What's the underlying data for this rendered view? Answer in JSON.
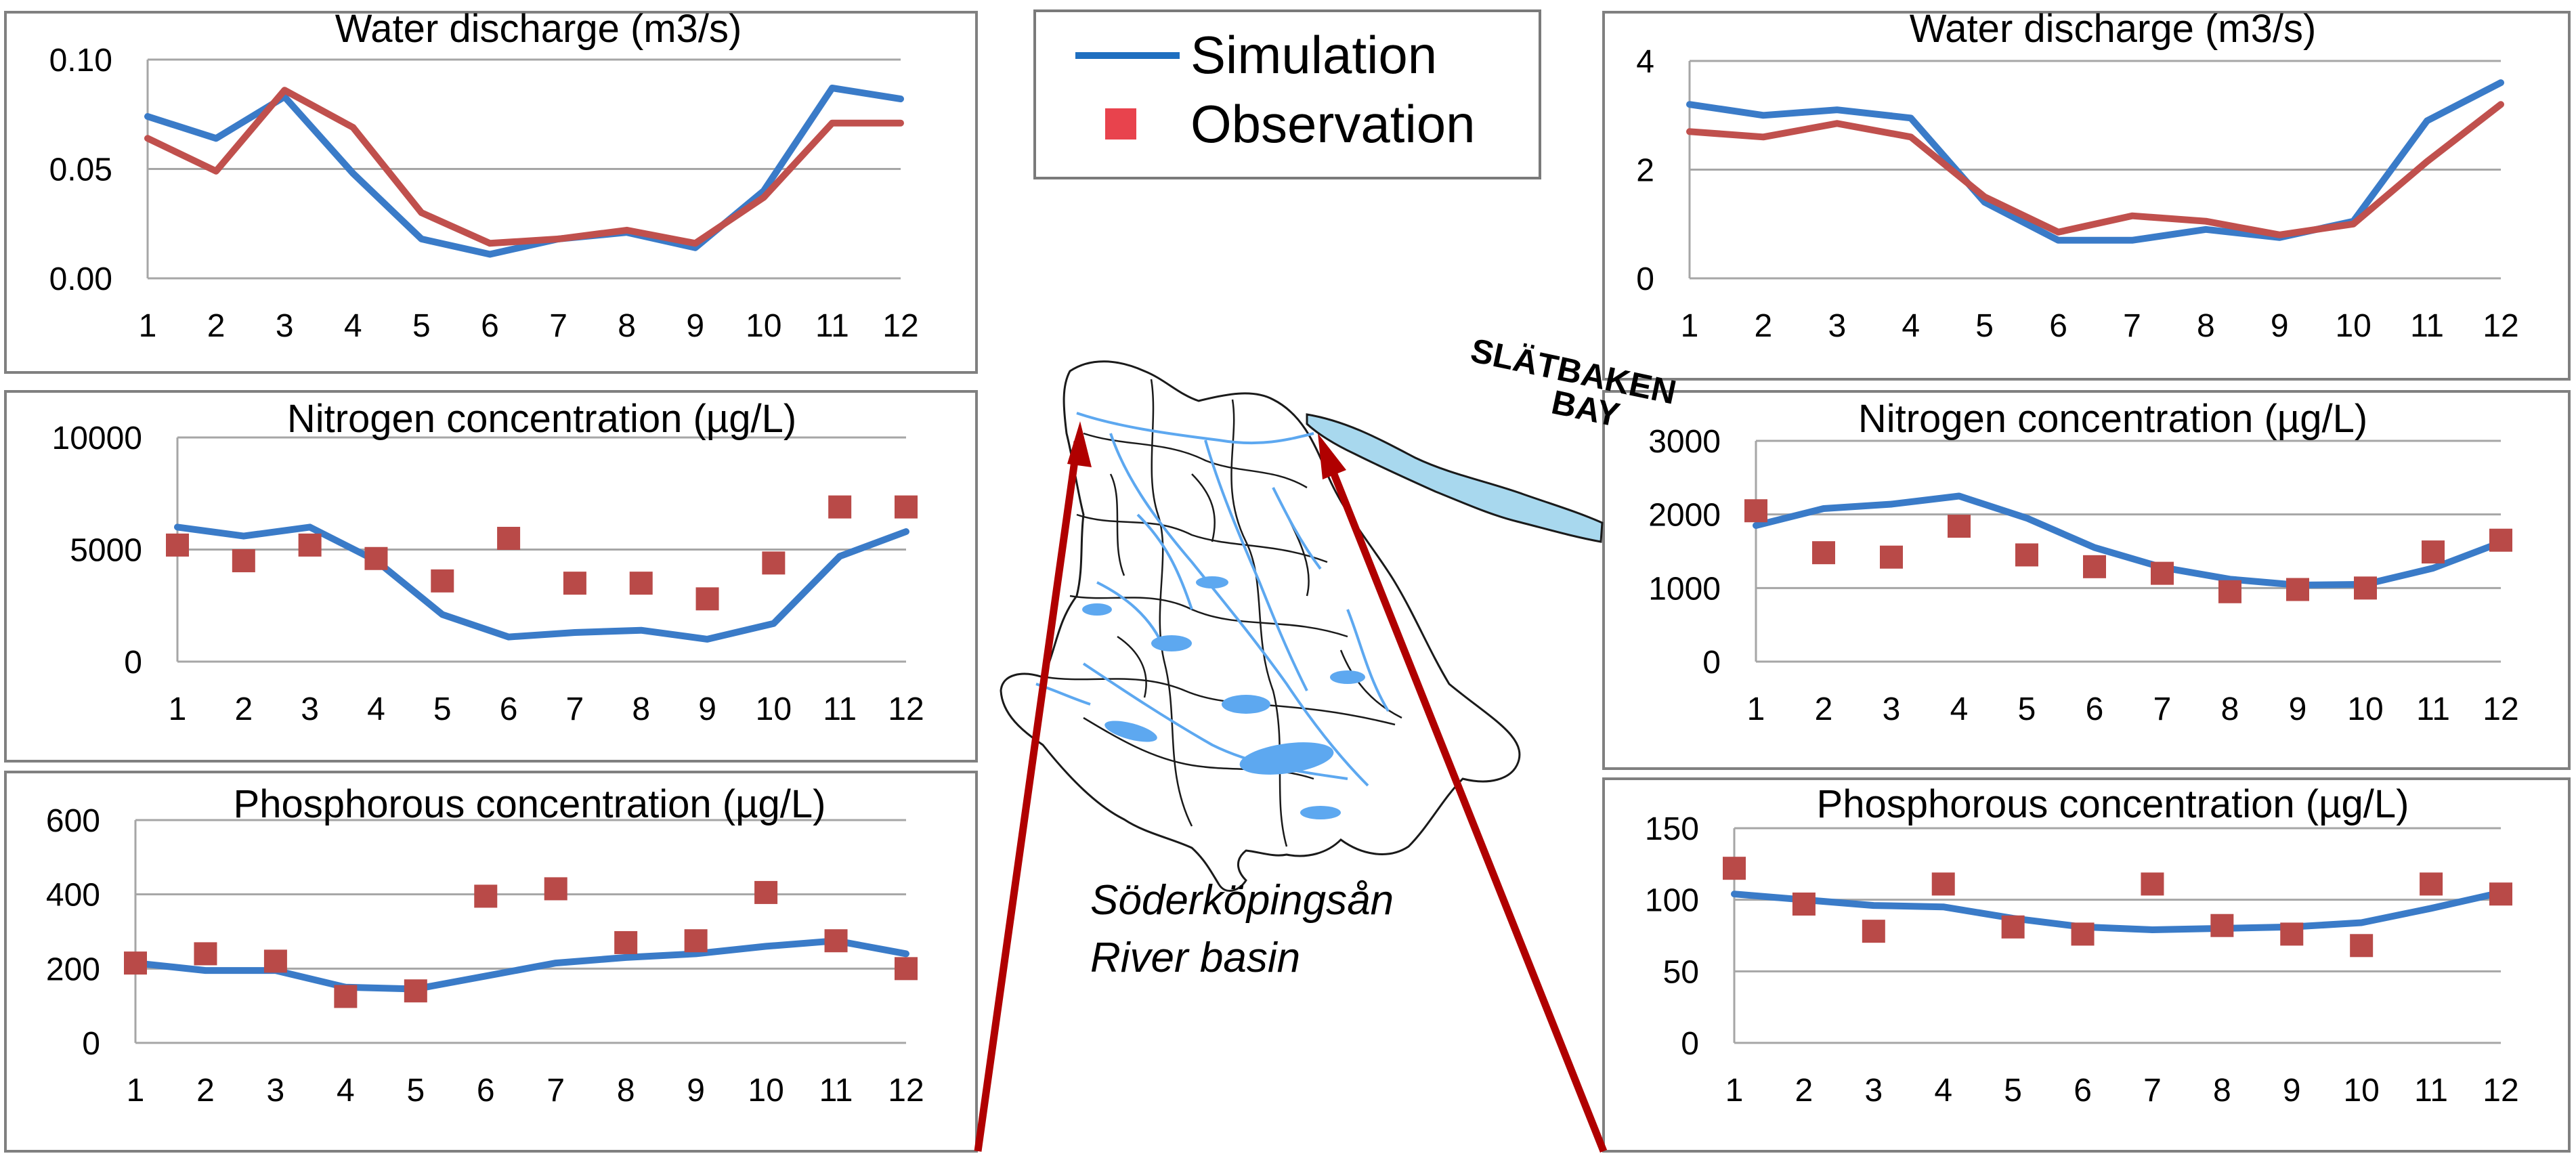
{
  "legend": {
    "simulation_label": "Simulation",
    "observation_label": "Observation"
  },
  "colors": {
    "simulation": "#3A7BC8",
    "observation_line": "#C0504D",
    "observation_marker": "#B94A48",
    "legend_simulation": "#1F6FC0",
    "legend_observation": "#E8434D",
    "frame": "#808080",
    "grid": "#A6A6A6",
    "arrow": "#B00000",
    "map_outline": "#1A1A1A",
    "map_water": "#5DA8F0",
    "bay_fill": "#A8D8EE"
  },
  "map": {
    "bay_label_line1": "SLÄTBAKEN",
    "bay_label_line2": "BAY",
    "basin_label_line1": "Söderköpingsån",
    "basin_label_line2": "River basin"
  },
  "chart_data": [
    {
      "id": "left-discharge",
      "type": "line",
      "title": "Water discharge (m3/s)",
      "x": [
        1,
        2,
        3,
        4,
        5,
        6,
        7,
        8,
        9,
        10,
        11,
        12
      ],
      "ylim": [
        0,
        0.1
      ],
      "yticks": [
        "0.00",
        "0.05",
        "0.10"
      ],
      "grid": true,
      "series": [
        {
          "name": "Simulation",
          "style": "line",
          "values": [
            0.074,
            0.064,
            0.083,
            0.048,
            0.018,
            0.011,
            0.018,
            0.021,
            0.014,
            0.04,
            0.087,
            0.082
          ]
        },
        {
          "name": "Observation",
          "style": "line",
          "values": [
            0.064,
            0.049,
            0.086,
            0.069,
            0.03,
            0.016,
            0.018,
            0.022,
            0.016,
            0.037,
            0.071,
            0.071
          ]
        }
      ]
    },
    {
      "id": "left-nitrogen",
      "type": "line",
      "title": "Nitrogen concentration (µg/L)",
      "x": [
        1,
        2,
        3,
        4,
        5,
        6,
        7,
        8,
        9,
        10,
        11,
        12
      ],
      "ylim": [
        0,
        10000
      ],
      "yticks": [
        "0",
        "5000",
        "10000"
      ],
      "grid": true,
      "series": [
        {
          "name": "Simulation",
          "style": "line",
          "values": [
            6000,
            5600,
            6000,
            4500,
            2100,
            1100,
            1300,
            1400,
            1000,
            1700,
            4700,
            5800
          ]
        },
        {
          "name": "Observation",
          "style": "markers",
          "values": [
            5200,
            4500,
            5200,
            4600,
            3600,
            5500,
            3500,
            3500,
            2800,
            4400,
            6900,
            6900
          ]
        }
      ]
    },
    {
      "id": "left-phosphorous",
      "type": "line",
      "title": "Phosphorous concentration (µg/L)",
      "x": [
        1,
        2,
        3,
        4,
        5,
        6,
        7,
        8,
        9,
        10,
        11,
        12
      ],
      "ylim": [
        0,
        600
      ],
      "yticks": [
        "0",
        "200",
        "400",
        "600"
      ],
      "grid": true,
      "series": [
        {
          "name": "Simulation",
          "style": "line",
          "values": [
            215,
            195,
            195,
            150,
            145,
            180,
            215,
            230,
            240,
            260,
            275,
            240
          ]
        },
        {
          "name": "Observation",
          "style": "markers",
          "values": [
            215,
            240,
            220,
            125,
            140,
            395,
            415,
            270,
            275,
            405,
            275,
            200
          ]
        }
      ]
    },
    {
      "id": "right-discharge",
      "type": "line",
      "title": "Water discharge (m3/s)",
      "x": [
        1,
        2,
        3,
        4,
        5,
        6,
        7,
        8,
        9,
        10,
        11,
        12
      ],
      "ylim": [
        0,
        4
      ],
      "yticks": [
        "0",
        "2",
        "4"
      ],
      "grid": true,
      "series": [
        {
          "name": "Simulation",
          "style": "line",
          "values": [
            3.2,
            3.0,
            3.1,
            2.95,
            1.4,
            0.7,
            0.7,
            0.9,
            0.75,
            1.05,
            2.9,
            3.6
          ]
        },
        {
          "name": "Observation",
          "style": "line",
          "values": [
            2.7,
            2.6,
            2.85,
            2.6,
            1.5,
            0.85,
            1.15,
            1.05,
            0.8,
            1.0,
            2.15,
            3.2
          ]
        }
      ]
    },
    {
      "id": "right-nitrogen",
      "type": "line",
      "title": "Nitrogen concentration (µg/L)",
      "x": [
        1,
        2,
        3,
        4,
        5,
        6,
        7,
        8,
        9,
        10,
        11,
        12
      ],
      "ylim": [
        0,
        3000
      ],
      "yticks": [
        "0",
        "1000",
        "2000",
        "3000"
      ],
      "grid": true,
      "series": [
        {
          "name": "Simulation",
          "style": "line",
          "values": [
            1850,
            2080,
            2140,
            2250,
            1950,
            1550,
            1280,
            1120,
            1040,
            1050,
            1270,
            1620
          ]
        },
        {
          "name": "Observation",
          "style": "markers",
          "values": [
            2050,
            1480,
            1420,
            1840,
            1450,
            1290,
            1200,
            950,
            980,
            1000,
            1490,
            1650
          ]
        }
      ]
    },
    {
      "id": "right-phosphorous",
      "type": "line",
      "title": "Phosphorous concentration (µg/L)",
      "x": [
        1,
        2,
        3,
        4,
        5,
        6,
        7,
        8,
        9,
        10,
        11,
        12
      ],
      "ylim": [
        0,
        150
      ],
      "yticks": [
        "0",
        "50",
        "100",
        "150"
      ],
      "grid": true,
      "series": [
        {
          "name": "Simulation",
          "style": "line",
          "values": [
            104,
            100,
            96,
            95,
            87,
            81,
            79,
            80,
            81,
            84,
            94,
            105
          ]
        },
        {
          "name": "Observation",
          "style": "markers",
          "values": [
            122,
            97,
            78,
            111,
            81,
            76,
            111,
            82,
            76,
            68,
            111,
            104
          ]
        }
      ]
    }
  ]
}
